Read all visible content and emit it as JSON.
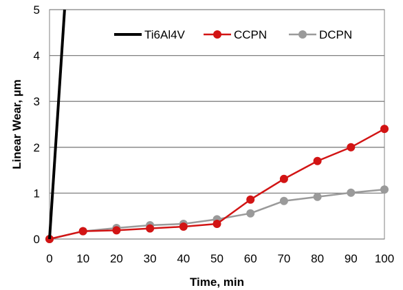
{
  "chart_data": {
    "type": "line",
    "xlabel": "Time, min",
    "ylabel": "Linear Wear, µm",
    "xlim": [
      0,
      100
    ],
    "ylim": [
      0,
      5
    ],
    "x_ticks": [
      0,
      10,
      20,
      30,
      40,
      50,
      60,
      70,
      80,
      90,
      100
    ],
    "y_ticks": [
      0,
      1,
      2,
      3,
      4,
      5
    ],
    "grid": "horizontal",
    "legend_position": "top-right",
    "series": [
      {
        "name": "Ti6Al4V",
        "color": "#000000",
        "marker": "none",
        "x": [
          0,
          4.5
        ],
        "values": [
          0,
          5
        ]
      },
      {
        "name": "CCPN",
        "color": "#d21414",
        "marker": "circle",
        "x": [
          0,
          10,
          20,
          30,
          40,
          50,
          60,
          70,
          80,
          90,
          100
        ],
        "values": [
          0,
          0.17,
          0.19,
          0.23,
          0.27,
          0.33,
          0.86,
          1.31,
          1.7,
          2.0,
          2.4
        ]
      },
      {
        "name": "DCPN",
        "color": "#9a9a9a",
        "marker": "circle",
        "x": [
          0,
          10,
          20,
          30,
          40,
          50,
          60,
          70,
          80,
          90,
          100
        ],
        "values": [
          0,
          0.17,
          0.24,
          0.3,
          0.33,
          0.43,
          0.56,
          0.83,
          0.92,
          1.01,
          1.08
        ]
      }
    ]
  }
}
